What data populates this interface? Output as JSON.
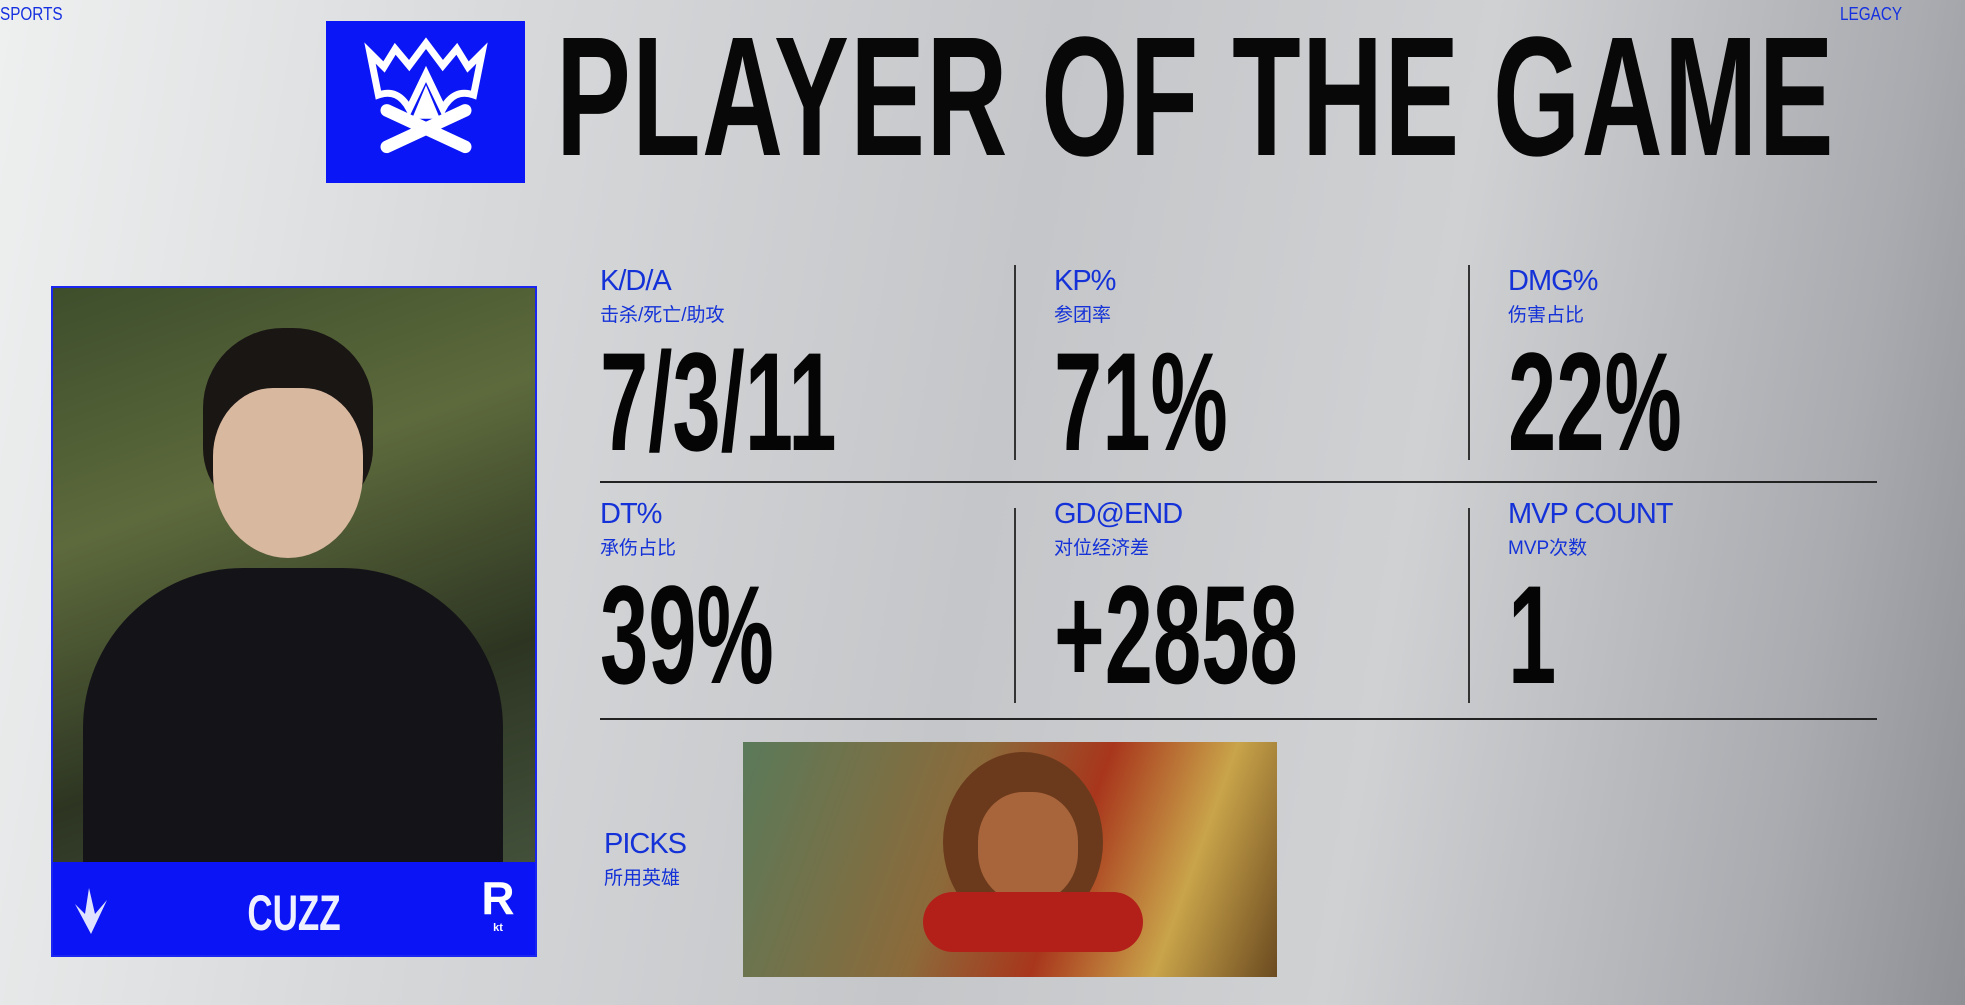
{
  "top_bar": {
    "left_text": "SPORTS",
    "right_text": "LEGACY"
  },
  "header": {
    "title": "PLAYER OF THE GAME",
    "logo": "worlds-logo"
  },
  "player": {
    "name": "CUZZ",
    "team_logo": "kt-rolster-logo",
    "team_logo_text": "kt",
    "role_icon": "jungle-icon"
  },
  "stats": [
    {
      "label": "K/D/A",
      "sub": "击杀/死亡/助攻",
      "value": "7/3/11"
    },
    {
      "label": "KP%",
      "sub": "参团率",
      "value": "71%"
    },
    {
      "label": "DMG%",
      "sub": "伤害占比",
      "value": "22%"
    },
    {
      "label": "DT%",
      "sub": "承伤占比",
      "value": "39%"
    },
    {
      "label": "GD@END",
      "sub": "对位经济差",
      "value": "+2858"
    },
    {
      "label": "MVP COUNT",
      "sub": "MVP次数",
      "value": "1"
    }
  ],
  "picks": {
    "label": "PICKS",
    "sub": "所用英雄",
    "champion": "wukong-splash"
  },
  "colors": {
    "brand_blue": "#0a14f5",
    "label_blue": "#1432d8"
  }
}
